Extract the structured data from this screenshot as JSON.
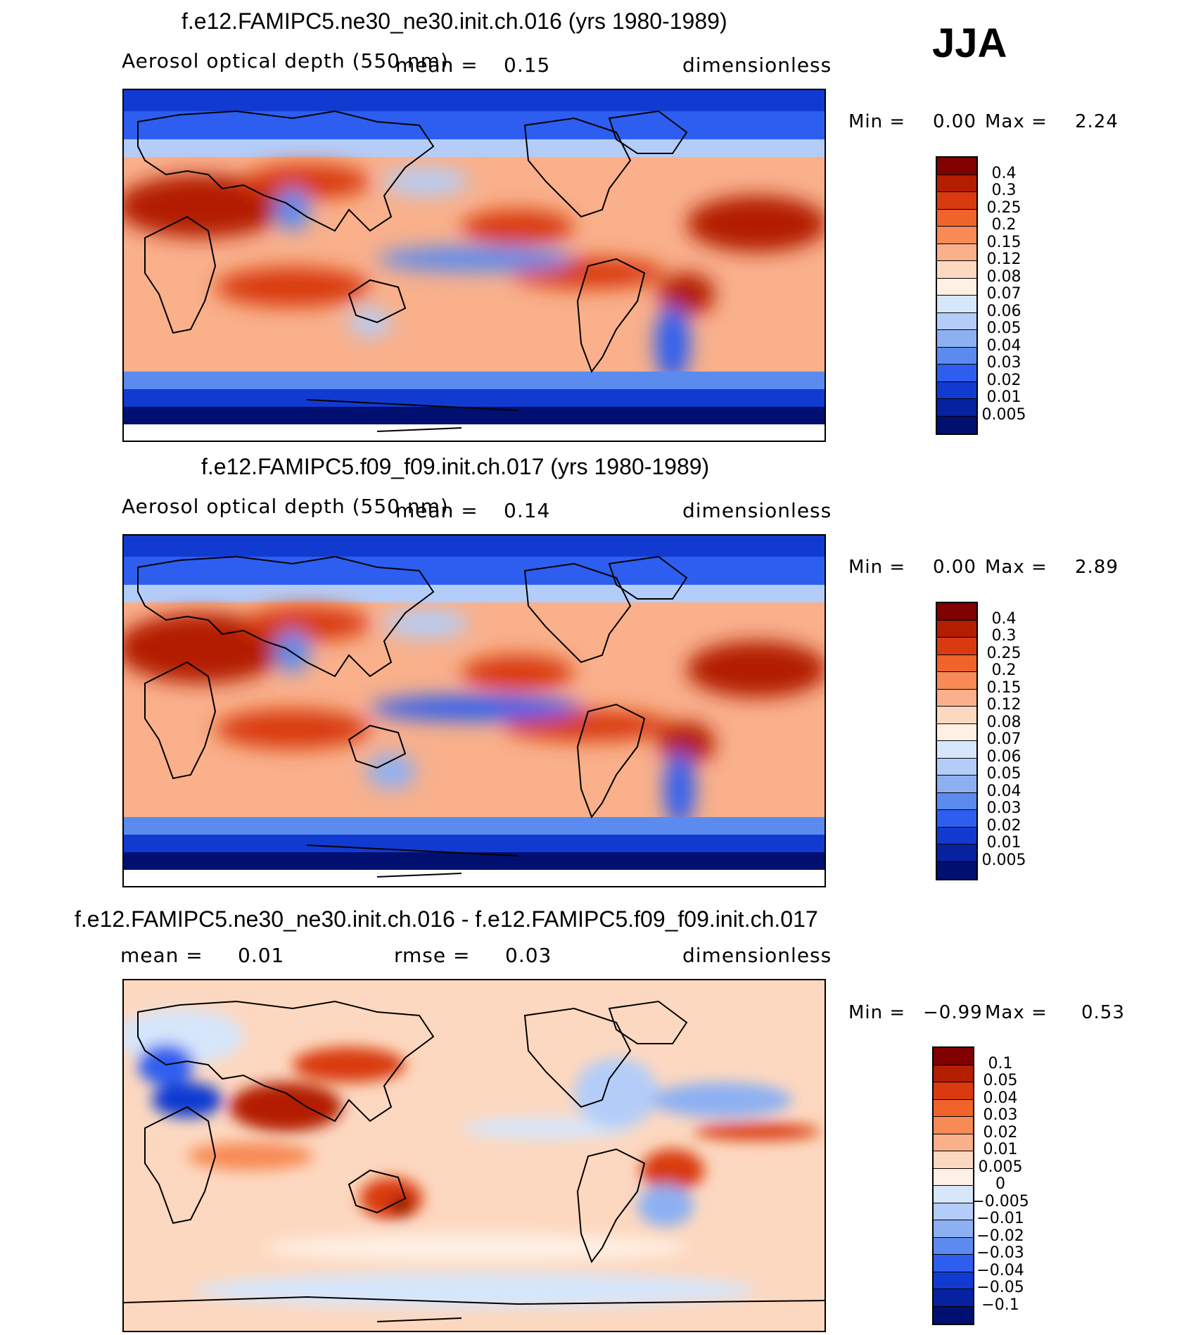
{
  "season": "JJA",
  "chart_data": [
    {
      "type": "heatmap",
      "title": "f.e12.FAMIPC5.ne30_ne30.init.ch.016 (yrs 1980-1989)",
      "variable": "Aerosol optical depth (550 nm)",
      "mean_label": "mean =",
      "mean": "0.15",
      "units": "dimensionless",
      "min_label": "Min =",
      "min": "0.00",
      "max_label": "Max =",
      "max": "2.24",
      "colorbar_ticks": [
        "0.4",
        "0.3",
        "0.25",
        "0.2",
        "0.15",
        "0.12",
        "0.08",
        "0.07",
        "0.06",
        "0.05",
        "0.04",
        "0.03",
        "0.02",
        "0.01",
        "0.005"
      ],
      "colors": [
        "#800000",
        "#b31d00",
        "#d93a10",
        "#f0632b",
        "#f78a55",
        "#f9b08b",
        "#fdd8c0",
        "#fef0e4",
        "#d6e6fb",
        "#b4cdf8",
        "#8db0f3",
        "#5c8bef",
        "#2d5ef0",
        "#113bd0",
        "#0622a0",
        "#000f70"
      ]
    },
    {
      "type": "heatmap",
      "title": "f.e12.FAMIPC5.f09_f09.init.ch.017 (yrs 1980-1989)",
      "variable": "Aerosol optical depth (550 nm)",
      "mean_label": "mean =",
      "mean": "0.14",
      "units": "dimensionless",
      "min_label": "Min =",
      "min": "0.00",
      "max_label": "Max =",
      "max": "2.89",
      "colorbar_ticks": [
        "0.4",
        "0.3",
        "0.25",
        "0.2",
        "0.15",
        "0.12",
        "0.08",
        "0.07",
        "0.06",
        "0.05",
        "0.04",
        "0.03",
        "0.02",
        "0.01",
        "0.005"
      ],
      "colors": [
        "#800000",
        "#b31d00",
        "#d93a10",
        "#f0632b",
        "#f78a55",
        "#f9b08b",
        "#fdd8c0",
        "#fef0e4",
        "#d6e6fb",
        "#b4cdf8",
        "#8db0f3",
        "#5c8bef",
        "#2d5ef0",
        "#113bd0",
        "#0622a0",
        "#000f70"
      ]
    },
    {
      "type": "heatmap",
      "title": "f.e12.FAMIPC5.ne30_ne30.init.ch.016 - f.e12.FAMIPC5.f09_f09.init.ch.017",
      "mean_label": "mean =",
      "mean": "0.01",
      "rmse_label": "rmse =",
      "rmse": "0.03",
      "units": "dimensionless",
      "min_label": "Min =",
      "min": "−0.99",
      "max_label": "Max =",
      "max": "0.53",
      "colorbar_ticks": [
        "0.1",
        "0.05",
        "0.04",
        "0.03",
        "0.02",
        "0.01",
        "0.005",
        "0",
        "−0.005",
        "−0.01",
        "−0.02",
        "−0.03",
        "−0.04",
        "−0.05",
        "−0.1"
      ],
      "colors": [
        "#800000",
        "#b31d00",
        "#d93a10",
        "#f0632b",
        "#f78a55",
        "#f9b08b",
        "#fdd8c0",
        "#fef0e4",
        "#d6e6fb",
        "#b4cdf8",
        "#8db0f3",
        "#5c8bef",
        "#2d5ef0",
        "#113bd0",
        "#0622a0",
        "#000f70"
      ]
    }
  ]
}
